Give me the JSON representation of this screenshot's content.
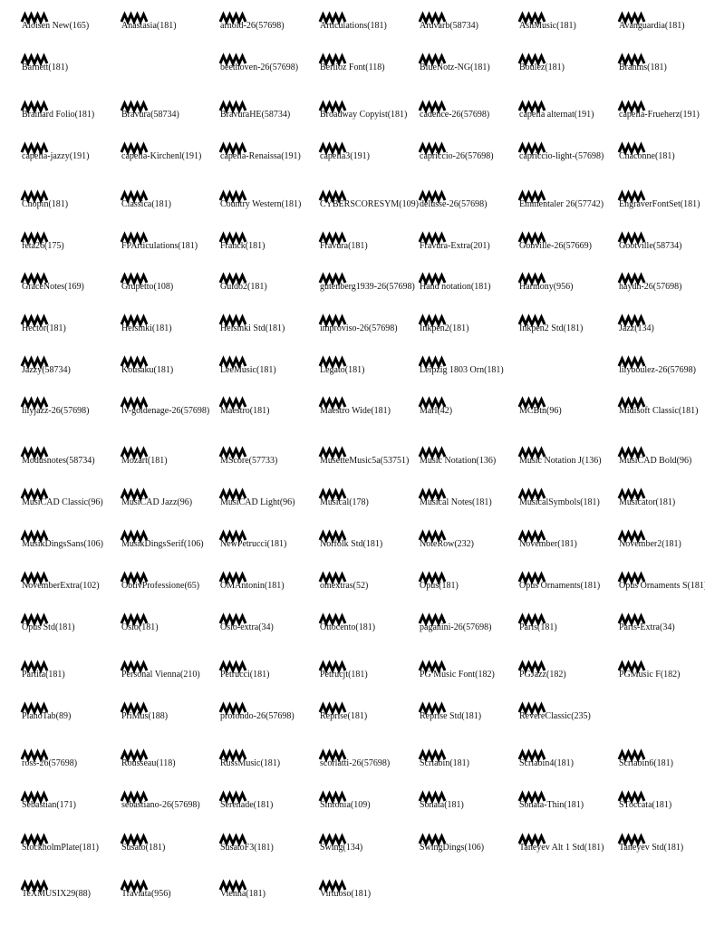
{
  "rows": [
    [
      "Aloisen New(165)",
      "Anastasia(181)",
      "arnold-26(57698)",
      "Articulations(181)",
      "Aruvarb(58734)",
      "AshMusic(181)",
      "Avanguardia(181)"
    ],
    [
      "Barnett(181)",
      null,
      "beethoven-26(57698)",
      "Berlioz Font(118)",
      "BlueNotz-NG(181)",
      "Boulez(181)",
      "Brahms(181)"
    ],
    [
      "Brainard Folio(181)",
      "Bravura(58734)",
      "BravuraHE(58734)",
      "Broadway Copyist(181)",
      "cadence-26(57698)",
      "capella alternat(191)",
      "capella-Frueherz(191)"
    ],
    [
      "capella-jazzy(191)",
      "capella-Kirchenl(191)",
      "capella-Renaissa(191)",
      "capella3(191)",
      "capriccio-26(57698)",
      "capriccio-light-(57698)",
      "Chaconne(181)"
    ],
    [
      "Chopin(181)",
      "Classica(181)",
      "Country Western(181)",
      "CYBERSCORESYM(109)",
      "delusse-26(57698)",
      "Emmentaler 26(57742)",
      "EngraverFontSet(181)"
    ],
    [
      "feta26(175)",
      "FPArticulations(181)",
      "Franck(181)",
      "Fravura(181)",
      "Fravura-Extra(201)",
      "Gonville-26(57669)",
      "Gootville(58734)"
    ],
    [
      "GraceNotes(169)",
      "Grupetto(108)",
      "Guido2(181)",
      "gutenberg1939-26(57698)",
      "Hand notation(181)",
      "Harmony(956)",
      "haydn-26(57698)"
    ],
    [
      "Hector(181)",
      "Helsinki(181)",
      "Helsinki Std(181)",
      "improviso-26(57698)",
      "Inkpen2(181)",
      "Inkpen2 Std(181)",
      "Jazz(134)"
    ],
    [
      "Jazzy(58734)",
      "Kousaku(181)",
      "LeeMusic(181)",
      "Legato(181)",
      "Leipzig 1803 Orn(181)",
      null,
      "lilyboulez-26(57698)"
    ],
    [
      "lilyjazz-26(57698)",
      "lv-goldenage-26(57698)",
      "Maestro(181)",
      "Maestro Wide(181)",
      "Marl(42)",
      "MCBtn(96)",
      "Midisoft Classic(181)"
    ],
    [
      "Modusnotes(58734)",
      "Mozart(181)",
      "MScore(57733)",
      "MusetteMusic5a(53751)",
      "Music Notation(136)",
      "Music Notation J(136)",
      "MusiCAD Bold(96)"
    ],
    [
      "MusiCAD Classic(96)",
      "MusiCAD Jazz(96)",
      "MusiCAD Light(96)",
      "Musical(178)",
      "Musical Notes(181)",
      "MusicalSymbols(181)",
      "Musicator(181)"
    ],
    [
      "MusikDingsSans(106)",
      "MusikDingsSerif(106)",
      "NewPetrucci(181)",
      "Norfolk Std(181)",
      "NoteRow(232)",
      "November(181)",
      "November2(181)"
    ],
    [
      "NovemberExtra(102)",
      "ObtivProfessione(65)",
      "OMAntonin(181)",
      "omextras(52)",
      "Opus(181)",
      "Opus Ornaments(181)",
      "Opus Ornaments S(181)"
    ],
    [
      "Opus Std(181)",
      "Oslo(181)",
      "Oslo-extra(34)",
      "Ottocento(181)",
      "paganini-26(57698)",
      "Paris(181)",
      "Paris-Extra(34)"
    ],
    [
      "Partita(181)",
      "Personal Vienna(210)",
      "Petrucci(181)",
      "Petrucjt(181)",
      "PG Music Font(182)",
      "PGJazz(182)",
      "PGMusic F(182)"
    ],
    [
      "PianoTab(89)",
      "PriMus(188)",
      "profondo-26(57698)",
      "Reprise(181)",
      "Reprise Std(181)",
      "RevereClassic(235)",
      null
    ],
    [
      "ross-26(57698)",
      "Rousseau(118)",
      "RussMusic(181)",
      "scorlatti-26(57698)",
      "Scriabin(181)",
      "Scriabin4(181)",
      "Scriabin6(181)"
    ],
    [
      "Sebastian(171)",
      "sebastiano-26(57698)",
      "Serenade(181)",
      "Sinfonia(109)",
      "Sonata(181)",
      "Sonata-Thin(181)",
      "SToccata(181)"
    ],
    [
      "StockholmPlate(181)",
      "Susato(181)",
      "SusatoF3(181)",
      "Swing(134)",
      "SwingDings(106)",
      "Taneyev Alt 1 Std(181)",
      "Taneyev Std(181)"
    ],
    [
      "TeXMUSIX29(88)",
      "Traviata(956)",
      "Vienna(181)",
      "Virtuoso(181)",
      null,
      null,
      null
    ]
  ]
}
